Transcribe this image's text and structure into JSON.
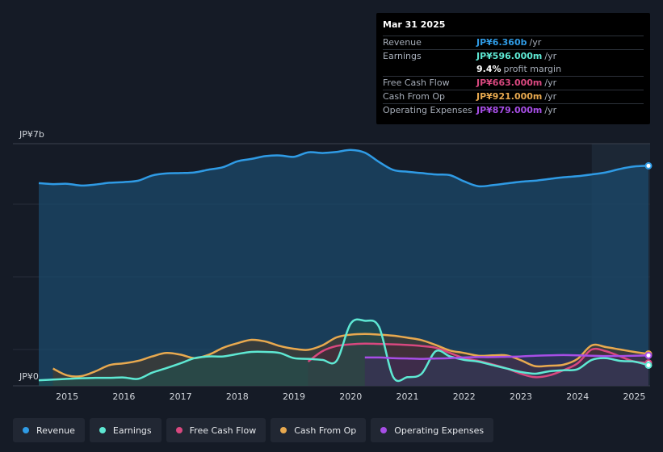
{
  "chart_data": {
    "type": "area",
    "y_axis": {
      "min_label": "JP¥0",
      "max_label": "JP¥7b",
      "ylim": [
        0,
        7000
      ]
    },
    "x_ticks": [
      "2015",
      "2016",
      "2017",
      "2018",
      "2019",
      "2020",
      "2021",
      "2022",
      "2023",
      "2024",
      "2025"
    ],
    "x_range": [
      2014.5,
      2025.25
    ],
    "highlight_start": 2024.25,
    "series": [
      {
        "name": "Revenue",
        "color": "#2f9be5",
        "fill": "#1b4a6b",
        "points": [
          [
            2014.5,
            5860
          ],
          [
            2014.75,
            5830
          ],
          [
            2015.0,
            5840
          ],
          [
            2015.25,
            5790
          ],
          [
            2015.5,
            5820
          ],
          [
            2015.75,
            5870
          ],
          [
            2016.0,
            5890
          ],
          [
            2016.25,
            5930
          ],
          [
            2016.5,
            6080
          ],
          [
            2016.75,
            6140
          ],
          [
            2017.0,
            6150
          ],
          [
            2017.25,
            6170
          ],
          [
            2017.5,
            6250
          ],
          [
            2017.75,
            6320
          ],
          [
            2018.0,
            6490
          ],
          [
            2018.25,
            6560
          ],
          [
            2018.5,
            6640
          ],
          [
            2018.75,
            6660
          ],
          [
            2019.0,
            6620
          ],
          [
            2019.25,
            6750
          ],
          [
            2019.5,
            6730
          ],
          [
            2019.75,
            6760
          ],
          [
            2020.0,
            6820
          ],
          [
            2020.25,
            6740
          ],
          [
            2020.5,
            6470
          ],
          [
            2020.75,
            6240
          ],
          [
            2021.0,
            6190
          ],
          [
            2021.25,
            6150
          ],
          [
            2021.5,
            6110
          ],
          [
            2021.75,
            6090
          ],
          [
            2022.0,
            5910
          ],
          [
            2022.25,
            5770
          ],
          [
            2022.5,
            5800
          ],
          [
            2022.75,
            5850
          ],
          [
            2023.0,
            5900
          ],
          [
            2023.25,
            5930
          ],
          [
            2023.5,
            5980
          ],
          [
            2023.75,
            6030
          ],
          [
            2024.0,
            6060
          ],
          [
            2024.25,
            6110
          ],
          [
            2024.5,
            6170
          ],
          [
            2024.75,
            6270
          ],
          [
            2025.0,
            6340
          ],
          [
            2025.25,
            6360
          ]
        ]
      },
      {
        "name": "Earnings",
        "color": "#5ee8d3",
        "fill": "#1f5451",
        "points": [
          [
            2014.5,
            160
          ],
          [
            2014.75,
            180
          ],
          [
            2015.0,
            200
          ],
          [
            2015.25,
            220
          ],
          [
            2015.5,
            230
          ],
          [
            2015.75,
            230
          ],
          [
            2016.0,
            240
          ],
          [
            2016.25,
            200
          ],
          [
            2016.5,
            380
          ],
          [
            2016.75,
            510
          ],
          [
            2017.0,
            650
          ],
          [
            2017.25,
            800
          ],
          [
            2017.5,
            850
          ],
          [
            2017.75,
            850
          ],
          [
            2018.0,
            920
          ],
          [
            2018.25,
            980
          ],
          [
            2018.5,
            980
          ],
          [
            2018.75,
            950
          ],
          [
            2019.0,
            800
          ],
          [
            2019.25,
            780
          ],
          [
            2019.5,
            750
          ],
          [
            2019.75,
            720
          ],
          [
            2020.0,
            1800
          ],
          [
            2020.25,
            1880
          ],
          [
            2020.5,
            1700
          ],
          [
            2020.75,
            250
          ],
          [
            2021.0,
            250
          ],
          [
            2021.25,
            350
          ],
          [
            2021.5,
            1000
          ],
          [
            2021.75,
            850
          ],
          [
            2022.0,
            750
          ],
          [
            2022.25,
            700
          ],
          [
            2022.5,
            600
          ],
          [
            2022.75,
            500
          ],
          [
            2023.0,
            400
          ],
          [
            2023.25,
            350
          ],
          [
            2023.5,
            420
          ],
          [
            2023.75,
            450
          ],
          [
            2024.0,
            480
          ],
          [
            2024.25,
            750
          ],
          [
            2024.5,
            800
          ],
          [
            2024.75,
            720
          ],
          [
            2025.0,
            700
          ],
          [
            2025.25,
            596
          ]
        ]
      },
      {
        "name": "Free Cash Flow",
        "color": "#d8487f",
        "fill": "#4a2636",
        "points": [
          [
            2019.25,
            700
          ],
          [
            2019.5,
            1000
          ],
          [
            2019.75,
            1150
          ],
          [
            2020.0,
            1200
          ],
          [
            2020.25,
            1220
          ],
          [
            2020.5,
            1210
          ],
          [
            2020.75,
            1200
          ],
          [
            2021.0,
            1180
          ],
          [
            2021.25,
            1150
          ],
          [
            2021.5,
            1100
          ],
          [
            2021.75,
            950
          ],
          [
            2022.0,
            800
          ],
          [
            2022.25,
            720
          ],
          [
            2022.5,
            620
          ],
          [
            2022.75,
            500
          ],
          [
            2023.0,
            350
          ],
          [
            2023.25,
            250
          ],
          [
            2023.5,
            300
          ],
          [
            2023.75,
            450
          ],
          [
            2024.0,
            650
          ],
          [
            2024.25,
            1050
          ],
          [
            2024.5,
            1000
          ],
          [
            2024.75,
            850
          ],
          [
            2025.0,
            700
          ],
          [
            2025.25,
            663
          ]
        ]
      },
      {
        "name": "Cash From Op",
        "color": "#e8a94f",
        "fill": "#4e3a24",
        "points": [
          [
            2014.75,
            500
          ],
          [
            2015.0,
            300
          ],
          [
            2015.25,
            280
          ],
          [
            2015.5,
            420
          ],
          [
            2015.75,
            600
          ],
          [
            2016.0,
            650
          ],
          [
            2016.25,
            720
          ],
          [
            2016.5,
            850
          ],
          [
            2016.75,
            950
          ],
          [
            2017.0,
            900
          ],
          [
            2017.25,
            800
          ],
          [
            2017.5,
            900
          ],
          [
            2017.75,
            1100
          ],
          [
            2018.0,
            1230
          ],
          [
            2018.25,
            1330
          ],
          [
            2018.5,
            1280
          ],
          [
            2018.75,
            1150
          ],
          [
            2019.0,
            1070
          ],
          [
            2019.25,
            1040
          ],
          [
            2019.5,
            1170
          ],
          [
            2019.75,
            1400
          ],
          [
            2020.0,
            1480
          ],
          [
            2020.25,
            1500
          ],
          [
            2020.5,
            1480
          ],
          [
            2020.75,
            1450
          ],
          [
            2021.0,
            1390
          ],
          [
            2021.25,
            1320
          ],
          [
            2021.5,
            1180
          ],
          [
            2021.75,
            1020
          ],
          [
            2022.0,
            950
          ],
          [
            2022.25,
            870
          ],
          [
            2022.5,
            880
          ],
          [
            2022.75,
            880
          ],
          [
            2023.0,
            740
          ],
          [
            2023.25,
            570
          ],
          [
            2023.5,
            580
          ],
          [
            2023.75,
            610
          ],
          [
            2024.0,
            780
          ],
          [
            2024.25,
            1170
          ],
          [
            2024.5,
            1120
          ],
          [
            2024.75,
            1050
          ],
          [
            2025.0,
            980
          ],
          [
            2025.25,
            921
          ]
        ]
      },
      {
        "name": "Operating Expenses",
        "color": "#a74ee6",
        "fill": "#3c2a5a",
        "points": [
          [
            2020.25,
            820
          ],
          [
            2020.5,
            820
          ],
          [
            2020.75,
            800
          ],
          [
            2021.0,
            790
          ],
          [
            2021.25,
            780
          ],
          [
            2021.5,
            790
          ],
          [
            2021.75,
            800
          ],
          [
            2022.0,
            820
          ],
          [
            2022.25,
            830
          ],
          [
            2022.5,
            830
          ],
          [
            2022.75,
            840
          ],
          [
            2023.0,
            850
          ],
          [
            2023.25,
            870
          ],
          [
            2023.5,
            880
          ],
          [
            2023.75,
            890
          ],
          [
            2024.0,
            880
          ],
          [
            2024.25,
            870
          ],
          [
            2024.5,
            860
          ],
          [
            2024.75,
            860
          ],
          [
            2025.0,
            870
          ],
          [
            2025.25,
            879
          ]
        ]
      }
    ],
    "draw_order": [
      "Revenue",
      "Cash From Op",
      "Free Cash Flow",
      "Earnings",
      "Operating Expenses"
    ]
  },
  "tooltip": {
    "date": "Mar 31 2025",
    "rows": [
      {
        "label": "Revenue",
        "value": "JP¥6.360b",
        "unit": "/yr",
        "color": "#2f9be5"
      },
      {
        "label": "Earnings",
        "value": "JP¥596.000m",
        "unit": "/yr",
        "color": "#5ee8d3"
      },
      {
        "label": "",
        "value": "9.4%",
        "unit": "profit margin",
        "color": "#ffffff"
      },
      {
        "label": "Free Cash Flow",
        "value": "JP¥663.000m",
        "unit": "/yr",
        "color": "#d8487f"
      },
      {
        "label": "Cash From Op",
        "value": "JP¥921.000m",
        "unit": "/yr",
        "color": "#e8a94f"
      },
      {
        "label": "Operating Expenses",
        "value": "JP¥879.000m",
        "unit": "/yr",
        "color": "#a74ee6"
      }
    ]
  },
  "legend": [
    {
      "label": "Revenue",
      "color": "#2f9be5"
    },
    {
      "label": "Earnings",
      "color": "#5ee8d3"
    },
    {
      "label": "Free Cash Flow",
      "color": "#d8487f"
    },
    {
      "label": "Cash From Op",
      "color": "#e8a94f"
    },
    {
      "label": "Operating Expenses",
      "color": "#a74ee6"
    }
  ]
}
